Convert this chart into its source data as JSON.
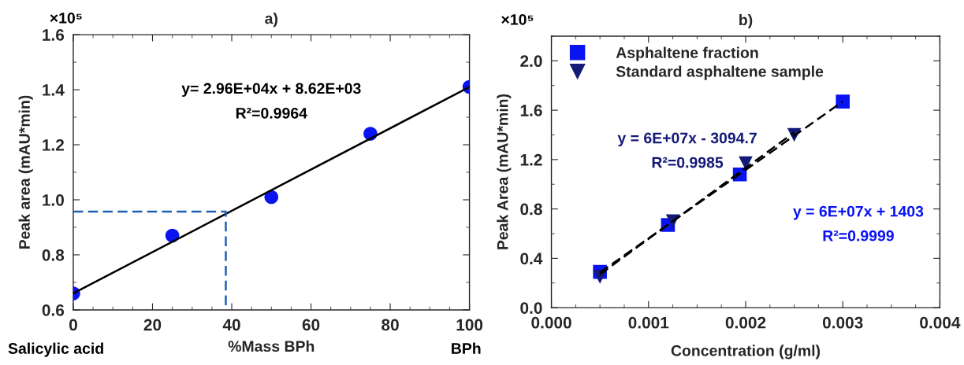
{
  "chart_data": [
    {
      "type": "scatter",
      "title": "a)",
      "xlabel": "%Mass BPh",
      "ylabel": "Peak area (mAU*min)",
      "xlim": [
        0,
        100
      ],
      "xticks": [
        0,
        20,
        40,
        60,
        80,
        100
      ],
      "ylim": [
        0.6,
        1.6
      ],
      "yticks": [
        {
          "value": 0.6,
          "label": "0.6"
        },
        {
          "value": 0.8,
          "label": "0.8"
        },
        {
          "value": 1.0,
          "label": "1.0"
        },
        {
          "value": 1.2,
          "label": "1.2"
        },
        {
          "value": 1.4,
          "label": "1.4"
        },
        {
          "value": 1.6,
          "label": "1.6"
        }
      ],
      "grid": false,
      "legend": false,
      "x": [
        0,
        25,
        50,
        75,
        100
      ],
      "series": [
        {
          "color": "#0a14f0",
          "marker": "circle",
          "values": [
            0.66,
            0.87,
            1.01,
            1.24,
            1.41
          ]
        },
        {
          "type": "line",
          "color": "#000000",
          "marker": "none",
          "line_style": "solid",
          "x": [
            0,
            100
          ],
          "values": [
            0.66,
            1.41
          ]
        },
        {
          "type": "line",
          "color": "#1f5fb0",
          "marker": "none",
          "line_style": "dashed",
          "x": [
            0,
            38.5,
            38.5
          ],
          "values": [
            0.957,
            0.957,
            0.6
          ]
        }
      ],
      "annotations": [
        {
          "text": "×10⁵"
        },
        {
          "text": "y= 2.96E+04x + 8.62E+03"
        },
        {
          "text": "R²=0.9964"
        },
        {
          "text": "Salicylic acid"
        },
        {
          "text": "BPh"
        }
      ]
    },
    {
      "type": "scatter",
      "title": "b)",
      "xlabel": "Concentration (g/ml)",
      "ylabel": "Peak Area (mAU*min)",
      "xlim": [
        0,
        0.004
      ],
      "xticks": [
        {
          "value": 0,
          "label": "0.000"
        },
        {
          "value": 0.001,
          "label": "0.001"
        },
        {
          "value": 0.002,
          "label": "0.002"
        },
        {
          "value": 0.003,
          "label": "0.003"
        },
        {
          "value": 0.004,
          "label": "0.004"
        }
      ],
      "ylim": [
        0,
        2.2
      ],
      "yticks": [
        {
          "value": 0,
          "label": "0.0"
        },
        {
          "value": 0.4,
          "label": "0.4"
        },
        {
          "value": 0.8,
          "label": "0.8"
        },
        {
          "value": 1.2,
          "label": "1.2"
        },
        {
          "value": 1.6,
          "label": "1.6"
        },
        {
          "value": 2.0,
          "label": "2.0"
        }
      ],
      "grid": false,
      "legend": "top left",
      "series": [
        {
          "name": "Asphaltene fraction",
          "color": "#0a14f0",
          "marker": "square",
          "x": [
            0.0005,
            0.0012,
            0.00194,
            0.003
          ],
          "values": [
            0.29,
            0.67,
            1.08,
            1.67
          ]
        },
        {
          "name": "Standard asphaltene sample",
          "color": "#141a78",
          "marker": "triangle",
          "x": [
            0.0005,
            0.00125,
            0.002,
            0.0025
          ],
          "values": [
            0.25,
            0.7,
            1.17,
            1.4
          ]
        },
        {
          "type": "line",
          "color": "#000000",
          "marker": "none",
          "line_style": "dashed",
          "x": [
            0.0005,
            0.003
          ],
          "values": [
            0.285,
            1.67
          ]
        },
        {
          "type": "line",
          "color": "#000000",
          "marker": "none",
          "line_style": "dashed",
          "x": [
            0.0005,
            0.0025
          ],
          "values": [
            0.27,
            1.42
          ]
        }
      ],
      "annotations": [
        {
          "text": "×10⁵"
        },
        {
          "text": "y = 6E+07x - 3094.7"
        },
        {
          "text": "R²=0.9985"
        },
        {
          "text": "y = 6E+07x + 1403"
        },
        {
          "text": "R²=0.9999"
        }
      ]
    }
  ]
}
